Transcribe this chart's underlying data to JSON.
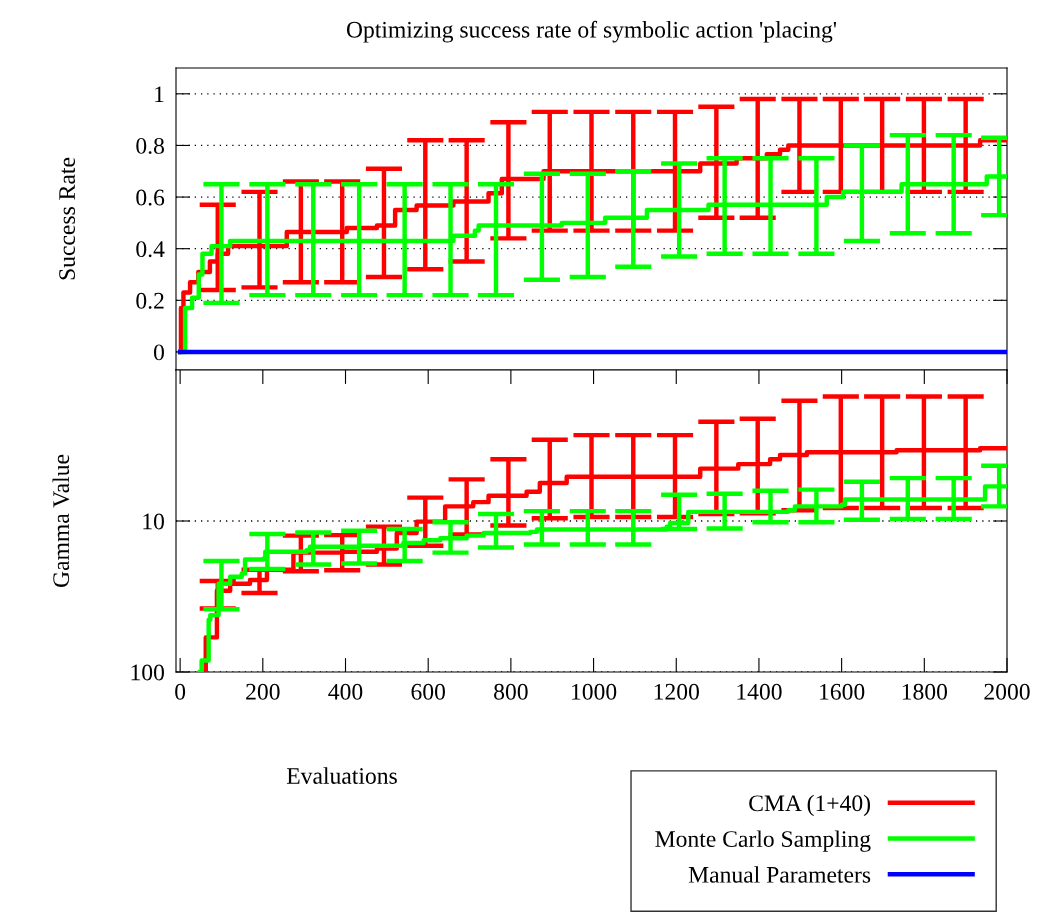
{
  "chart_data": [
    {
      "type": "step",
      "title": "Optimizing success rate of symbolic action 'placing'",
      "ylabel": "Success Rate",
      "xlim": [
        -10,
        2000
      ],
      "ylim": [
        -0.07,
        1.1
      ],
      "yticks": [
        0,
        0.2,
        0.4,
        0.6,
        0.8,
        1
      ],
      "grid": "y",
      "tick_labels": "y",
      "legend": "bottom right",
      "marker": "none",
      "line_style": "solid",
      "series": [
        {
          "name": "CMA (1+40)",
          "color": "#ff0000",
          "x": [
            0,
            2,
            8,
            24,
            44,
            72,
            91,
            116,
            192,
            258,
            292,
            392,
            403,
            476,
            493,
            520,
            572,
            593,
            661,
            693,
            746,
            778,
            794,
            879,
            894,
            995,
            1096,
            1197,
            1258,
            1297,
            1346,
            1397,
            1419,
            1451,
            1471,
            1498,
            1598,
            1698,
            1799,
            1900,
            1935,
            2000
          ],
          "values": [
            0,
            0.17,
            0.23,
            0.27,
            0.31,
            0.35,
            0.38,
            0.41,
            0.41,
            0.465,
            0.465,
            0.465,
            0.48,
            0.49,
            0.49,
            0.55,
            0.567,
            0.567,
            0.583,
            0.583,
            0.615,
            0.67,
            0.67,
            0.7,
            0.7,
            0.7,
            0.7,
            0.7,
            0.73,
            0.73,
            0.75,
            0.75,
            0.766,
            0.783,
            0.8,
            0.8,
            0.8,
            0.8,
            0.8,
            0.8,
            0.82,
            0.82
          ],
          "errors": [
            null,
            null,
            null,
            null,
            null,
            null,
            [
              0.24,
              0.57
            ],
            null,
            [
              0.25,
              0.62
            ],
            null,
            [
              0.27,
              0.66
            ],
            [
              0.27,
              0.66
            ],
            null,
            null,
            [
              0.29,
              0.71
            ],
            null,
            null,
            [
              0.32,
              0.82
            ],
            null,
            [
              0.35,
              0.82
            ],
            null,
            null,
            [
              0.44,
              0.89
            ],
            null,
            [
              0.47,
              0.93
            ],
            [
              0.47,
              0.93
            ],
            [
              0.47,
              0.93
            ],
            [
              0.47,
              0.93
            ],
            null,
            [
              0.52,
              0.95
            ],
            null,
            [
              0.52,
              0.98
            ],
            null,
            null,
            null,
            [
              0.62,
              0.98
            ],
            [
              0.62,
              0.98
            ],
            [
              0.62,
              0.98
            ],
            [
              0.62,
              0.98
            ],
            [
              0.62,
              0.98
            ],
            null,
            null
          ]
        },
        {
          "name": "Monte Carlo Sampling",
          "color": "#00ff00",
          "x": [
            0,
            12,
            29,
            45,
            54,
            76,
            100,
            121,
            211,
            322,
            433,
            543,
            654,
            661,
            713,
            722,
            764,
            875,
            923,
            986,
            1028,
            1096,
            1129,
            1207,
            1278,
            1317,
            1428,
            1539,
            1564,
            1604,
            1649,
            1745,
            1760,
            1871,
            1951,
            1981,
            2000
          ],
          "values": [
            0,
            0.17,
            0.21,
            0.3,
            0.38,
            0.41,
            0.41,
            0.43,
            0.43,
            0.43,
            0.43,
            0.43,
            0.43,
            0.45,
            0.47,
            0.49,
            0.49,
            0.49,
            0.5,
            0.5,
            0.52,
            0.52,
            0.55,
            0.55,
            0.57,
            0.57,
            0.57,
            0.57,
            0.6,
            0.62,
            0.62,
            0.65,
            0.65,
            0.65,
            0.68,
            0.68,
            0.68
          ],
          "errors": [
            null,
            null,
            null,
            null,
            null,
            null,
            [
              0.19,
              0.65
            ],
            null,
            [
              0.22,
              0.65
            ],
            [
              0.22,
              0.65
            ],
            [
              0.22,
              0.65
            ],
            [
              0.22,
              0.65
            ],
            [
              0.22,
              0.65
            ],
            null,
            null,
            null,
            [
              0.22,
              0.65
            ],
            [
              0.28,
              0.69
            ],
            null,
            [
              0.29,
              0.69
            ],
            null,
            [
              0.33,
              0.7
            ],
            null,
            [
              0.37,
              0.73
            ],
            null,
            [
              0.38,
              0.75
            ],
            [
              0.38,
              0.75
            ],
            [
              0.38,
              0.75
            ],
            null,
            null,
            [
              0.43,
              0.8
            ],
            null,
            [
              0.46,
              0.84
            ],
            [
              0.46,
              0.84
            ],
            null,
            [
              0.53,
              0.83
            ],
            null
          ]
        },
        {
          "name": "Manual Parameters",
          "color": "#0000ff",
          "x": [
            0,
            2000
          ],
          "values": [
            0,
            0
          ]
        }
      ]
    },
    {
      "type": "step",
      "xlabel": "Evaluations",
      "ylabel": "Gamma Value",
      "log": "y",
      "xlim": [
        -10,
        2000
      ],
      "xticks": [
        0,
        200,
        400,
        600,
        800,
        1000,
        1200,
        1400,
        1600,
        1800,
        2000
      ],
      "ylim": [
        100,
        1
      ],
      "yticks": [
        10,
        100
      ],
      "grid": "y",
      "marker": "none",
      "line_style": "solid",
      "series": [
        {
          "color": "#ff0000",
          "x": [
            60,
            62,
            89,
            91,
            121,
            169,
            192,
            210,
            274,
            292,
            392,
            476,
            493,
            524,
            572,
            593,
            641,
            693,
            709,
            746,
            794,
            838,
            870,
            894,
            935,
            995,
            1096,
            1197,
            1258,
            1297,
            1350,
            1397,
            1427,
            1451,
            1498,
            1516,
            1598,
            1698,
            1733,
            1799,
            1900,
            1935,
            2000
          ],
          "values": [
            100,
            59,
            29,
            29,
            26,
            24.6,
            24.6,
            21,
            16.2,
            16.2,
            16,
            15.2,
            15.2,
            12,
            10.1,
            10.1,
            8,
            8,
            7.5,
            6.8,
            6.8,
            6.4,
            5.6,
            5.6,
            5.1,
            5.1,
            5.1,
            5.1,
            4.5,
            4.5,
            4.2,
            4.2,
            3.9,
            3.65,
            3.65,
            3.5,
            3.5,
            3.5,
            3.4,
            3.4,
            3.4,
            3.3,
            3.3
          ],
          "errors": [
            null,
            null,
            null,
            [
              25,
              38
            ],
            null,
            null,
            [
              21,
              30
            ],
            null,
            null,
            [
              12.5,
              21.5
            ],
            [
              12.4,
              21.2
            ],
            null,
            [
              10.9,
              19.4
            ],
            null,
            null,
            [
              7,
              14.6
            ],
            null,
            [
              5.3,
              12.3
            ],
            null,
            null,
            [
              3.9,
              10.7
            ],
            null,
            null,
            [
              2.9,
              9.6
            ],
            null,
            [
              2.7,
              9.4
            ],
            [
              2.7,
              9.4
            ],
            [
              2.7,
              9.4
            ],
            null,
            [
              2.2,
              9
            ],
            null,
            [
              2.1,
              8.9
            ],
            null,
            null,
            [
              1.6,
              8.5
            ],
            null,
            [
              1.5,
              8.2
            ],
            [
              1.5,
              8.2
            ],
            null,
            [
              1.5,
              8.2
            ],
            [
              1.5,
              8.2
            ],
            null,
            null
          ]
        },
        {
          "color": "#00ff00",
          "x": [
            48,
            52,
            69,
            73,
            93,
            100,
            121,
            149,
            157,
            202,
            206,
            211,
            306,
            314,
            322,
            433,
            540,
            543,
            589,
            629,
            654,
            693,
            734,
            764,
            847,
            863,
            875,
            986,
            1096,
            1177,
            1185,
            1207,
            1229,
            1317,
            1428,
            1471,
            1487,
            1539,
            1600,
            1608,
            1649,
            1760,
            1871,
            1947,
            1981,
            2000
          ],
          "values": [
            100,
            84,
            45,
            42,
            26,
            26,
            23.4,
            22.3,
            18,
            17.7,
            16,
            16,
            15.6,
            14.8,
            14.8,
            14.6,
            14,
            14,
            13.4,
            13,
            13,
            12.5,
            12,
            12,
            11.8,
            11.4,
            11.4,
            11.4,
            11.4,
            10.9,
            10.3,
            10.3,
            8.7,
            8.7,
            8.7,
            8.5,
            8,
            8,
            7.8,
            7.2,
            7.2,
            7.2,
            7.2,
            5.9,
            5.9,
            5.9
          ],
          "errors": [
            null,
            null,
            null,
            null,
            null,
            [
              18.4,
              38.4
            ],
            null,
            null,
            null,
            null,
            null,
            [
              12.2,
              20.8
            ],
            null,
            null,
            [
              11.9,
              19.4
            ],
            [
              11.6,
              19.1
            ],
            null,
            [
              11.3,
              18.4
            ],
            null,
            null,
            [
              10.2,
              16.2
            ],
            null,
            null,
            [
              9,
              15
            ],
            null,
            null,
            [
              8.6,
              14.3
            ],
            [
              8.6,
              14.3
            ],
            [
              8.6,
              14.3
            ],
            null,
            null,
            [
              6.7,
              11.3
            ],
            null,
            [
              6.6,
              11.2
            ],
            [
              6.3,
              10.2
            ],
            null,
            null,
            [
              6.2,
              10.2
            ],
            null,
            null,
            [
              5.5,
              9.8
            ],
            [
              5.2,
              9.7
            ],
            [
              5.2,
              9.7
            ],
            null,
            [
              4.3,
              8
            ],
            null
          ]
        }
      ]
    }
  ]
}
